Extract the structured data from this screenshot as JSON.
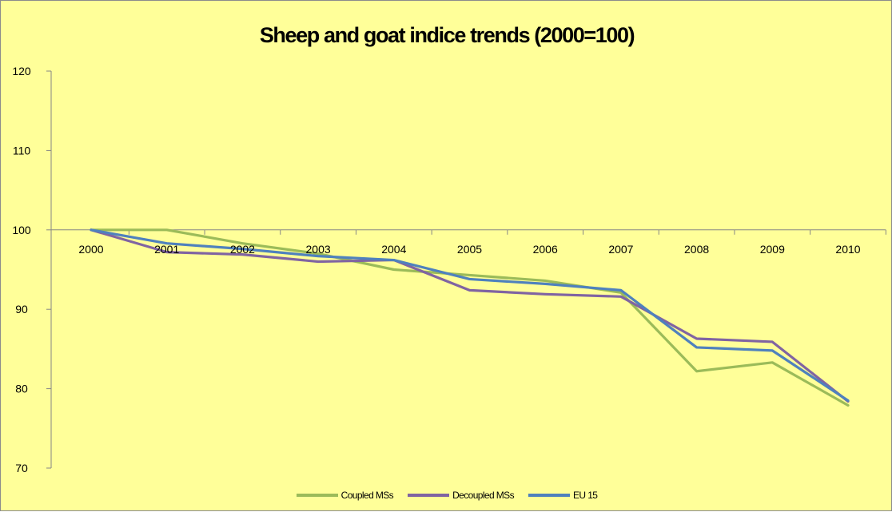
{
  "chart_data": {
    "type": "line",
    "title": "Sheep and goat indice trends (2000=100)",
    "xlabel": "",
    "ylabel": "",
    "categories": [
      "2000",
      "2001",
      "2002",
      "2003",
      "2004",
      "2005",
      "2006",
      "2007",
      "2008",
      "2009",
      "2010"
    ],
    "y_ticks": [
      "70",
      "80",
      "90",
      "100",
      "110",
      "120"
    ],
    "ylim": [
      70,
      120
    ],
    "x_axis_crosses_at": 100,
    "grid": false,
    "legend_position": "bottom",
    "background_color": "#ffff99",
    "series": [
      {
        "name": "Coupled MSs",
        "color": "#9bbb59",
        "values": [
          100,
          100,
          98.3,
          97.0,
          95.0,
          94.3,
          93.6,
          92.1,
          82.2,
          83.3,
          77.9
        ]
      },
      {
        "name": "Decoupled MSs",
        "color": "#8064a2",
        "values": [
          100,
          97.2,
          96.9,
          96.0,
          96.2,
          92.4,
          91.9,
          91.6,
          86.3,
          85.9,
          78.4
        ]
      },
      {
        "name": "EU 15",
        "color": "#4f81bd",
        "values": [
          100,
          98.3,
          97.6,
          96.7,
          96.2,
          93.8,
          93.2,
          92.4,
          85.2,
          84.8,
          78.5
        ]
      }
    ]
  }
}
